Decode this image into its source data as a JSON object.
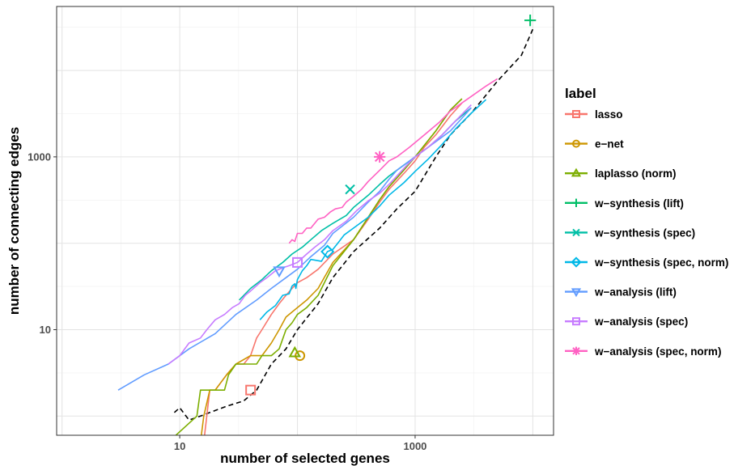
{
  "chart_data": {
    "type": "line",
    "title": "",
    "xlabel": "number of selected genes",
    "ylabel": "number of connecting edges",
    "xscale": "log10",
    "yscale": "log10",
    "xlim": [
      0.9,
      15000
    ],
    "ylim": [
      0.6,
      55000
    ],
    "xticks": [
      {
        "value": 10,
        "label": "10"
      },
      {
        "value": 1000,
        "label": "1000"
      }
    ],
    "yticks": [
      {
        "value": 10,
        "label": "10"
      },
      {
        "value": 1000,
        "label": "1000"
      }
    ],
    "grid": true,
    "legend": {
      "title": "label",
      "placement": "right"
    },
    "series": [
      {
        "name": "lasso",
        "color": "#F8766D",
        "marker": "square",
        "dash": false,
        "points": [
          [
            16,
            0.5
          ],
          [
            18,
            2
          ],
          [
            20,
            2
          ],
          [
            25,
            3
          ],
          [
            30,
            4
          ],
          [
            35,
            4
          ],
          [
            40,
            5
          ],
          [
            45,
            8
          ],
          [
            50,
            10
          ],
          [
            60,
            15
          ],
          [
            70,
            20
          ],
          [
            80,
            25
          ],
          [
            90,
            30
          ],
          [
            100,
            35
          ],
          [
            120,
            40
          ],
          [
            150,
            50
          ],
          [
            200,
            75
          ],
          [
            300,
            110
          ],
          [
            400,
            190
          ],
          [
            500,
            300
          ],
          [
            600,
            420
          ],
          [
            800,
            640
          ],
          [
            1000,
            900
          ],
          [
            1200,
            1300
          ],
          [
            1500,
            1800
          ],
          [
            2000,
            3000
          ],
          [
            2500,
            4200
          ]
        ],
        "marker_points": [
          [
            40,
            2
          ]
        ]
      },
      {
        "name": "e−net",
        "color": "#CD9600",
        "marker": "circle",
        "dash": false,
        "points": [
          [
            15,
            0.5
          ],
          [
            16,
            1
          ],
          [
            18,
            2
          ],
          [
            20,
            2
          ],
          [
            25,
            3
          ],
          [
            30,
            4
          ],
          [
            40,
            5
          ],
          [
            50,
            5
          ],
          [
            60,
            7
          ],
          [
            70,
            10
          ],
          [
            80,
            14
          ],
          [
            100,
            18
          ],
          [
            120,
            22
          ],
          [
            150,
            30
          ],
          [
            200,
            60
          ],
          [
            300,
            110
          ],
          [
            400,
            200
          ],
          [
            500,
            320
          ],
          [
            600,
            450
          ],
          [
            800,
            700
          ],
          [
            1000,
            1000
          ],
          [
            1500,
            2000
          ],
          [
            2000,
            3500
          ],
          [
            2500,
            4700
          ]
        ],
        "marker_points": [
          [
            105,
            5
          ]
        ]
      },
      {
        "name": "laplasso (norm)",
        "color": "#7CAE00",
        "marker": "triangle",
        "dash": false,
        "points": [
          [
            1,
            0.5
          ],
          [
            8,
            0.5
          ],
          [
            14,
            1
          ],
          [
            15,
            2
          ],
          [
            20,
            2
          ],
          [
            22,
            2
          ],
          [
            24,
            2
          ],
          [
            26,
            3
          ],
          [
            30,
            4
          ],
          [
            35,
            4
          ],
          [
            45,
            4
          ],
          [
            50,
            5
          ],
          [
            60,
            5
          ],
          [
            70,
            6
          ],
          [
            80,
            10
          ],
          [
            90,
            12
          ],
          [
            100,
            15
          ],
          [
            120,
            18
          ],
          [
            150,
            25
          ],
          [
            200,
            55
          ],
          [
            300,
            110
          ],
          [
            400,
            200
          ],
          [
            500,
            320
          ],
          [
            600,
            450
          ],
          [
            800,
            700
          ],
          [
            1000,
            1000
          ],
          [
            1500,
            2000
          ],
          [
            2000,
            3500
          ],
          [
            2500,
            4700
          ]
        ],
        "marker_points": [
          [
            95,
            5.4
          ]
        ]
      },
      {
        "name": "w−synthesis (lift)",
        "color": "#00BE67",
        "marker": "plus",
        "dash": false,
        "points": [],
        "marker_points": [
          [
            9500,
            38000
          ]
        ]
      },
      {
        "name": "w−synthesis (spec)",
        "color": "#00BFA6",
        "marker": "x",
        "dash": false,
        "points": [
          [
            32,
            22
          ],
          [
            40,
            30
          ],
          [
            50,
            38
          ],
          [
            60,
            48
          ],
          [
            75,
            60
          ],
          [
            90,
            75
          ],
          [
            110,
            90
          ],
          [
            130,
            110
          ],
          [
            160,
            140
          ],
          [
            200,
            170
          ],
          [
            260,
            210
          ],
          [
            300,
            260
          ],
          [
            400,
            360
          ],
          [
            500,
            480
          ],
          [
            600,
            600
          ],
          [
            800,
            800
          ],
          [
            1000,
            1000
          ],
          [
            1300,
            1300
          ],
          [
            1700,
            1800
          ],
          [
            2200,
            2600
          ],
          [
            3000,
            3700
          ]
        ],
        "marker_points": [
          [
            280,
            420
          ]
        ]
      },
      {
        "name": "w−synthesis (spec, norm)",
        "color": "#00B8E7",
        "marker": "diamond",
        "dash": false,
        "points": [
          [
            48,
            13
          ],
          [
            55,
            16
          ],
          [
            65,
            19
          ],
          [
            75,
            25
          ],
          [
            85,
            26
          ],
          [
            90,
            32
          ],
          [
            95,
            34
          ],
          [
            97,
            30
          ],
          [
            100,
            38
          ],
          [
            110,
            48
          ],
          [
            120,
            55
          ],
          [
            130,
            65
          ],
          [
            160,
            62
          ],
          [
            180,
            80
          ],
          [
            200,
            85
          ],
          [
            220,
            100
          ],
          [
            250,
            125
          ],
          [
            300,
            150
          ],
          [
            400,
            200
          ],
          [
            500,
            270
          ],
          [
            600,
            360
          ],
          [
            800,
            500
          ],
          [
            1000,
            680
          ],
          [
            1300,
            950
          ],
          [
            1700,
            1400
          ],
          [
            2200,
            2100
          ],
          [
            3000,
            3200
          ],
          [
            4000,
            4600
          ]
        ],
        "marker_points": [
          [
            180,
            80
          ]
        ]
      },
      {
        "name": "w−analysis (lift)",
        "color": "#619CFF",
        "marker": "triangle-down",
        "dash": false,
        "points": [
          [
            3,
            2
          ],
          [
            5,
            3
          ],
          [
            8,
            4
          ],
          [
            12,
            6
          ],
          [
            20,
            9
          ],
          [
            30,
            15
          ],
          [
            45,
            22
          ],
          [
            60,
            30
          ],
          [
            80,
            40
          ],
          [
            100,
            50
          ],
          [
            130,
            70
          ],
          [
            170,
            95
          ],
          [
            200,
            130
          ],
          [
            300,
            200
          ],
          [
            400,
            300
          ],
          [
            500,
            400
          ],
          [
            600,
            550
          ],
          [
            700,
            700
          ],
          [
            900,
            900
          ],
          [
            1200,
            1200
          ],
          [
            1600,
            1600
          ],
          [
            2000,
            2000
          ],
          [
            2500,
            2800
          ],
          [
            3000,
            3700
          ]
        ],
        "marker_points": [
          [
            70,
            48
          ]
        ]
      },
      {
        "name": "w−analysis (spec)",
        "color": "#C77CFF",
        "marker": "square",
        "dash": false,
        "points": [
          [
            8,
            4
          ],
          [
            10,
            5
          ],
          [
            12,
            7
          ],
          [
            15,
            8
          ],
          [
            17,
            10
          ],
          [
            20,
            13
          ],
          [
            24,
            15
          ],
          [
            28,
            18
          ],
          [
            32,
            20
          ],
          [
            36,
            25
          ],
          [
            40,
            28
          ],
          [
            48,
            35
          ],
          [
            55,
            40
          ],
          [
            65,
            48
          ],
          [
            75,
            52
          ],
          [
            85,
            55
          ],
          [
            100,
            60
          ],
          [
            120,
            75
          ],
          [
            140,
            90
          ],
          [
            170,
            110
          ],
          [
            200,
            140
          ],
          [
            260,
            180
          ],
          [
            320,
            240
          ],
          [
            400,
            310
          ],
          [
            500,
            380
          ],
          [
            600,
            480
          ],
          [
            700,
            600
          ],
          [
            850,
            800
          ],
          [
            1000,
            1000
          ],
          [
            1300,
            1300
          ],
          [
            1700,
            1800
          ],
          [
            2200,
            2600
          ],
          [
            3000,
            4000
          ]
        ],
        "marker_points": [
          [
            100,
            60
          ]
        ]
      },
      {
        "name": "w−analysis (spec, norm)",
        "color": "#FF61C3",
        "marker": "asterisk",
        "dash": false,
        "points": [
          [
            85,
            100
          ],
          [
            90,
            110
          ],
          [
            95,
            105
          ],
          [
            100,
            130
          ],
          [
            110,
            130
          ],
          [
            120,
            150
          ],
          [
            130,
            150
          ],
          [
            140,
            170
          ],
          [
            150,
            190
          ],
          [
            170,
            200
          ],
          [
            190,
            230
          ],
          [
            210,
            250
          ],
          [
            240,
            260
          ],
          [
            260,
            300
          ],
          [
            300,
            350
          ],
          [
            350,
            420
          ],
          [
            400,
            520
          ],
          [
            500,
            700
          ],
          [
            600,
            900
          ],
          [
            700,
            1000
          ],
          [
            900,
            1300
          ],
          [
            1200,
            1800
          ],
          [
            1600,
            2500
          ],
          [
            2000,
            3400
          ],
          [
            3000,
            5000
          ],
          [
            4000,
            6600
          ],
          [
            5000,
            8000
          ]
        ],
        "marker_points": [
          [
            500,
            1000
          ]
        ]
      }
    ],
    "reference_line": {
      "dash": true,
      "color": "#000000",
      "points": [
        [
          9,
          1.1
        ],
        [
          10,
          1.25
        ],
        [
          12,
          0.9
        ],
        [
          15,
          1
        ],
        [
          18,
          1.1
        ],
        [
          25,
          1.3
        ],
        [
          35,
          1.5
        ],
        [
          45,
          2
        ],
        [
          60,
          4
        ],
        [
          80,
          6
        ],
        [
          100,
          10
        ],
        [
          150,
          20
        ],
        [
          200,
          40
        ],
        [
          300,
          80
        ],
        [
          500,
          150
        ],
        [
          700,
          250
        ],
        [
          1000,
          400
        ],
        [
          1500,
          1000
        ],
        [
          2000,
          1800
        ],
        [
          3000,
          3200
        ],
        [
          5000,
          7500
        ],
        [
          8000,
          15000
        ],
        [
          10000,
          30000
        ]
      ]
    }
  }
}
